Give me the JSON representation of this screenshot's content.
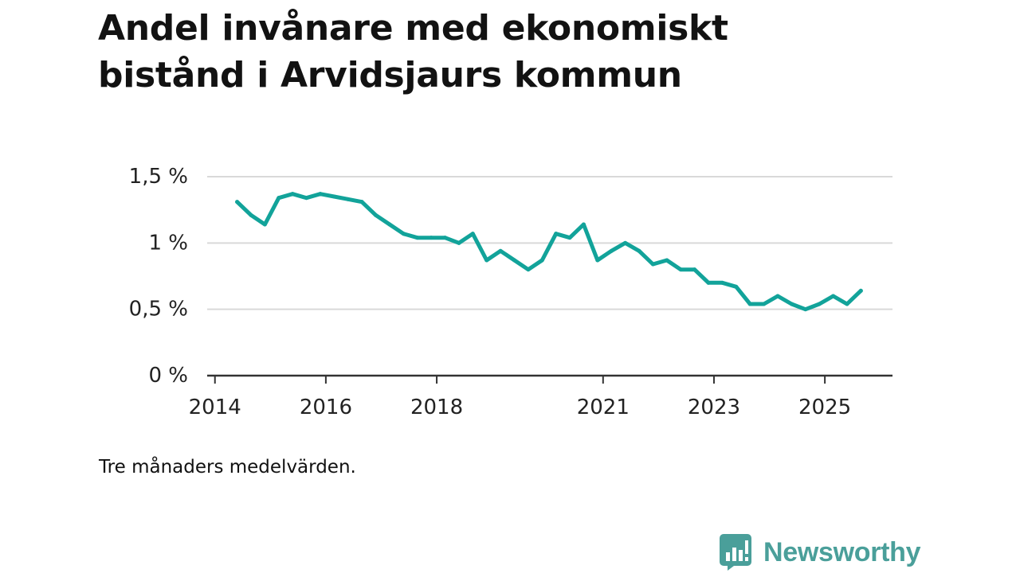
{
  "title_lines": [
    "Andel invånare med ekonomiskt",
    "bistånd i Arvidsjaurs kommun"
  ],
  "note": "Tre månaders medelvärden.",
  "brand": {
    "name": "Newsworthy",
    "icon": "newsworthy-logo-icon",
    "color": "#4a9f9a"
  },
  "colors": {
    "line": "#12a39a",
    "grid": "#d9d9d9",
    "axis": "#333333",
    "text": "#222222"
  },
  "chart_data": {
    "type": "line",
    "title": "Andel invånare med ekonomiskt bistånd i Arvidsjaurs kommun",
    "xlabel": "",
    "ylabel": "",
    "xlim": [
      2013.86,
      2026.22
    ],
    "ylim": [
      0,
      1.5
    ],
    "y_ticks": [
      0,
      0.5,
      1,
      1.5
    ],
    "y_tick_labels": [
      "0 %",
      "0,5 %",
      "1 %",
      "1,5 %"
    ],
    "x_ticks": [
      2014,
      2016,
      2018,
      2021,
      2023,
      2025
    ],
    "x_tick_labels": [
      "2014",
      "2016",
      "2018",
      "2021",
      "2023",
      "2025"
    ],
    "grid": true,
    "series": [
      {
        "name": "Andel invånare med ekonomiskt bistånd",
        "x": [
          2014.4,
          2014.65,
          2014.9,
          2015.15,
          2015.4,
          2015.65,
          2015.9,
          2016.15,
          2016.4,
          2016.65,
          2016.9,
          2017.15,
          2017.4,
          2017.65,
          2017.9,
          2018.15,
          2018.4,
          2018.65,
          2018.9,
          2019.15,
          2019.4,
          2019.65,
          2019.9,
          2020.15,
          2020.4,
          2020.65,
          2020.9,
          2021.15,
          2021.4,
          2021.65,
          2021.9,
          2022.15,
          2022.4,
          2022.65,
          2022.9,
          2023.15,
          2023.4,
          2023.65,
          2023.9,
          2024.15,
          2024.4,
          2024.65,
          2024.9,
          2025.15,
          2025.4,
          2025.65
        ],
        "values": [
          1.31,
          1.21,
          1.14,
          1.34,
          1.37,
          1.34,
          1.37,
          1.35,
          1.33,
          1.31,
          1.21,
          1.14,
          1.07,
          1.04,
          1.04,
          1.04,
          1.0,
          1.07,
          0.87,
          0.94,
          0.87,
          0.8,
          0.87,
          1.07,
          1.04,
          1.14,
          0.87,
          0.94,
          1.0,
          0.94,
          0.84,
          0.87,
          0.8,
          0.8,
          0.7,
          0.7,
          0.67,
          0.54,
          0.54,
          0.6,
          0.54,
          0.5,
          0.54,
          0.6,
          0.54,
          0.64
        ]
      }
    ]
  }
}
